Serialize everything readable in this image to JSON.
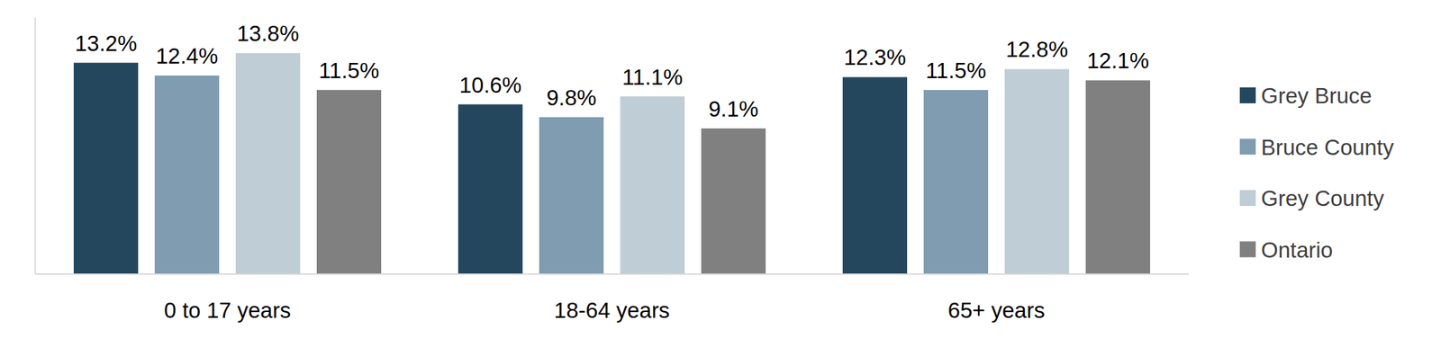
{
  "chart_data": {
    "type": "bar",
    "categories": [
      "0 to 17 years",
      "18-64 years",
      "65+ years"
    ],
    "series": [
      {
        "name": "Grey Bruce",
        "color": "#24475e",
        "values": [
          13.2,
          10.6,
          12.3
        ],
        "value_labels": [
          "13.2%",
          "10.6%",
          "12.3%"
        ]
      },
      {
        "name": "Bruce County",
        "color": "#7f9cb0",
        "values": [
          12.4,
          9.8,
          11.5
        ],
        "value_labels": [
          "12.4%",
          "9.8%",
          "11.5%"
        ]
      },
      {
        "name": "Grey County",
        "color": "#bfcdd6",
        "values": [
          13.8,
          11.1,
          12.8
        ],
        "value_labels": [
          "13.8%",
          "11.1%",
          "12.8%"
        ]
      },
      {
        "name": "Ontario",
        "color": "#808080",
        "values": [
          11.5,
          9.1,
          12.1
        ],
        "value_labels": [
          "11.5%",
          "9.1%",
          "12.1%"
        ]
      }
    ],
    "ylim": [
      0,
      16
    ],
    "yticks": [],
    "grid": false,
    "legend": "right",
    "data_labels": true,
    "tick_labels": "x"
  }
}
